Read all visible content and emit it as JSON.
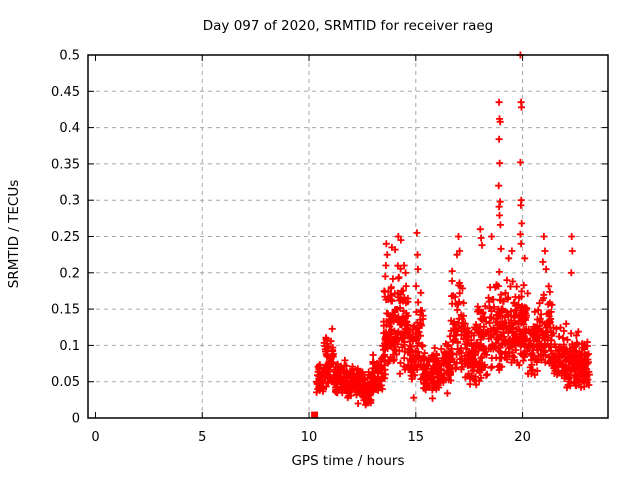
{
  "chart_data": {
    "type": "scatter",
    "title": "Day 097 of 2020, SRMTID for receiver raeg",
    "xlabel": "GPS time / hours",
    "ylabel": "SRMTID / TECUs",
    "xlim": [
      -0.35,
      24.0
    ],
    "ylim": [
      0,
      0.5
    ],
    "xticks": [
      0,
      5,
      10,
      15,
      20
    ],
    "xtick_labels": [
      "0",
      "5",
      "10",
      "15",
      "20"
    ],
    "yticks": [
      0,
      0.05,
      0.1,
      0.15,
      0.2,
      0.25,
      0.3,
      0.35,
      0.4,
      0.45,
      0.5
    ],
    "ytick_labels": [
      "0",
      "0.05",
      "0.1",
      "0.15",
      "0.2",
      "0.25",
      "0.3",
      "0.35",
      "0.4",
      "0.45",
      "0.5"
    ],
    "grid": "dashed",
    "legend": "none",
    "colors": {
      "marker": "#ff0000",
      "grid": "#a8a8a8",
      "frame": "#000000",
      "background": "#ffffff"
    },
    "marker": {
      "glyph": "plus",
      "size": 7
    },
    "start_marker": {
      "glyph": "filled-square",
      "x": 10.26,
      "y": 0.004,
      "size": 7
    },
    "data_span_hours": [
      10.26,
      23.15
    ],
    "clusters_format": "[x_start, x_end, n_points, y_min, y_max]",
    "clusters": [
      [
        10.35,
        10.7,
        40,
        0.028,
        0.08
      ],
      [
        10.7,
        11.15,
        60,
        0.04,
        0.125
      ],
      [
        11.15,
        11.8,
        80,
        0.032,
        0.085
      ],
      [
        11.8,
        12.4,
        75,
        0.028,
        0.075
      ],
      [
        12.4,
        12.95,
        70,
        0.02,
        0.068
      ],
      [
        12.95,
        13.45,
        60,
        0.035,
        0.09
      ],
      [
        13.45,
        13.8,
        50,
        0.05,
        0.19
      ],
      [
        13.8,
        14.25,
        70,
        0.07,
        0.22
      ],
      [
        14.25,
        14.65,
        55,
        0.06,
        0.21
      ],
      [
        14.65,
        15.0,
        45,
        0.045,
        0.145
      ],
      [
        15.0,
        15.35,
        42,
        0.05,
        0.185
      ],
      [
        15.35,
        16.3,
        110,
        0.03,
        0.1
      ],
      [
        16.3,
        16.65,
        50,
        0.045,
        0.12
      ],
      [
        16.65,
        17.25,
        65,
        0.055,
        0.21
      ],
      [
        17.25,
        17.85,
        75,
        0.045,
        0.135
      ],
      [
        17.85,
        18.35,
        60,
        0.045,
        0.17
      ],
      [
        18.35,
        19.25,
        100,
        0.06,
        0.21
      ],
      [
        19.25,
        19.85,
        75,
        0.065,
        0.2
      ],
      [
        19.85,
        20.25,
        60,
        0.07,
        0.21
      ],
      [
        20.25,
        20.7,
        50,
        0.055,
        0.155
      ],
      [
        20.7,
        21.45,
        85,
        0.065,
        0.185
      ],
      [
        21.45,
        22.05,
        70,
        0.045,
        0.14
      ],
      [
        22.05,
        22.65,
        75,
        0.04,
        0.13
      ],
      [
        22.65,
        23.15,
        60,
        0.04,
        0.115
      ]
    ],
    "outliers": [
      [
        12.3,
        0.02
      ],
      [
        12.65,
        0.018
      ],
      [
        13.52,
        0.175
      ],
      [
        13.57,
        0.195
      ],
      [
        13.6,
        0.21
      ],
      [
        13.62,
        0.24
      ],
      [
        13.66,
        0.225
      ],
      [
        13.88,
        0.235
      ],
      [
        14.03,
        0.232
      ],
      [
        14.18,
        0.25
      ],
      [
        14.3,
        0.245
      ],
      [
        14.45,
        0.21
      ],
      [
        14.52,
        0.2
      ],
      [
        14.9,
        0.028
      ],
      [
        15.05,
        0.255
      ],
      [
        15.08,
        0.225
      ],
      [
        15.1,
        0.205
      ],
      [
        15.78,
        0.027
      ],
      [
        16.48,
        0.034
      ],
      [
        16.93,
        0.225
      ],
      [
        17.0,
        0.25
      ],
      [
        17.05,
        0.23
      ],
      [
        18.02,
        0.26
      ],
      [
        18.06,
        0.248
      ],
      [
        18.1,
        0.238
      ],
      [
        18.55,
        0.25
      ],
      [
        18.88,
        0.32
      ],
      [
        18.9,
        0.435
      ],
      [
        18.9,
        0.384
      ],
      [
        18.9,
        0.291
      ],
      [
        18.92,
        0.412
      ],
      [
        18.92,
        0.279
      ],
      [
        18.93,
        0.351
      ],
      [
        18.95,
        0.408
      ],
      [
        18.95,
        0.298
      ],
      [
        18.96,
        0.266
      ],
      [
        18.99,
        0.233
      ],
      [
        19.35,
        0.22
      ],
      [
        19.5,
        0.23
      ],
      [
        19.9,
        0.5
      ],
      [
        19.9,
        0.352
      ],
      [
        19.9,
        0.253
      ],
      [
        19.92,
        0.293
      ],
      [
        19.93,
        0.435
      ],
      [
        19.93,
        0.24
      ],
      [
        19.94,
        0.3
      ],
      [
        19.95,
        0.428
      ],
      [
        19.96,
        0.268
      ],
      [
        20.1,
        0.22
      ],
      [
        20.95,
        0.215
      ],
      [
        21.0,
        0.25
      ],
      [
        21.05,
        0.23
      ],
      [
        21.1,
        0.205
      ],
      [
        22.28,
        0.2
      ],
      [
        22.3,
        0.25
      ],
      [
        22.33,
        0.23
      ]
    ],
    "seed": 97
  }
}
